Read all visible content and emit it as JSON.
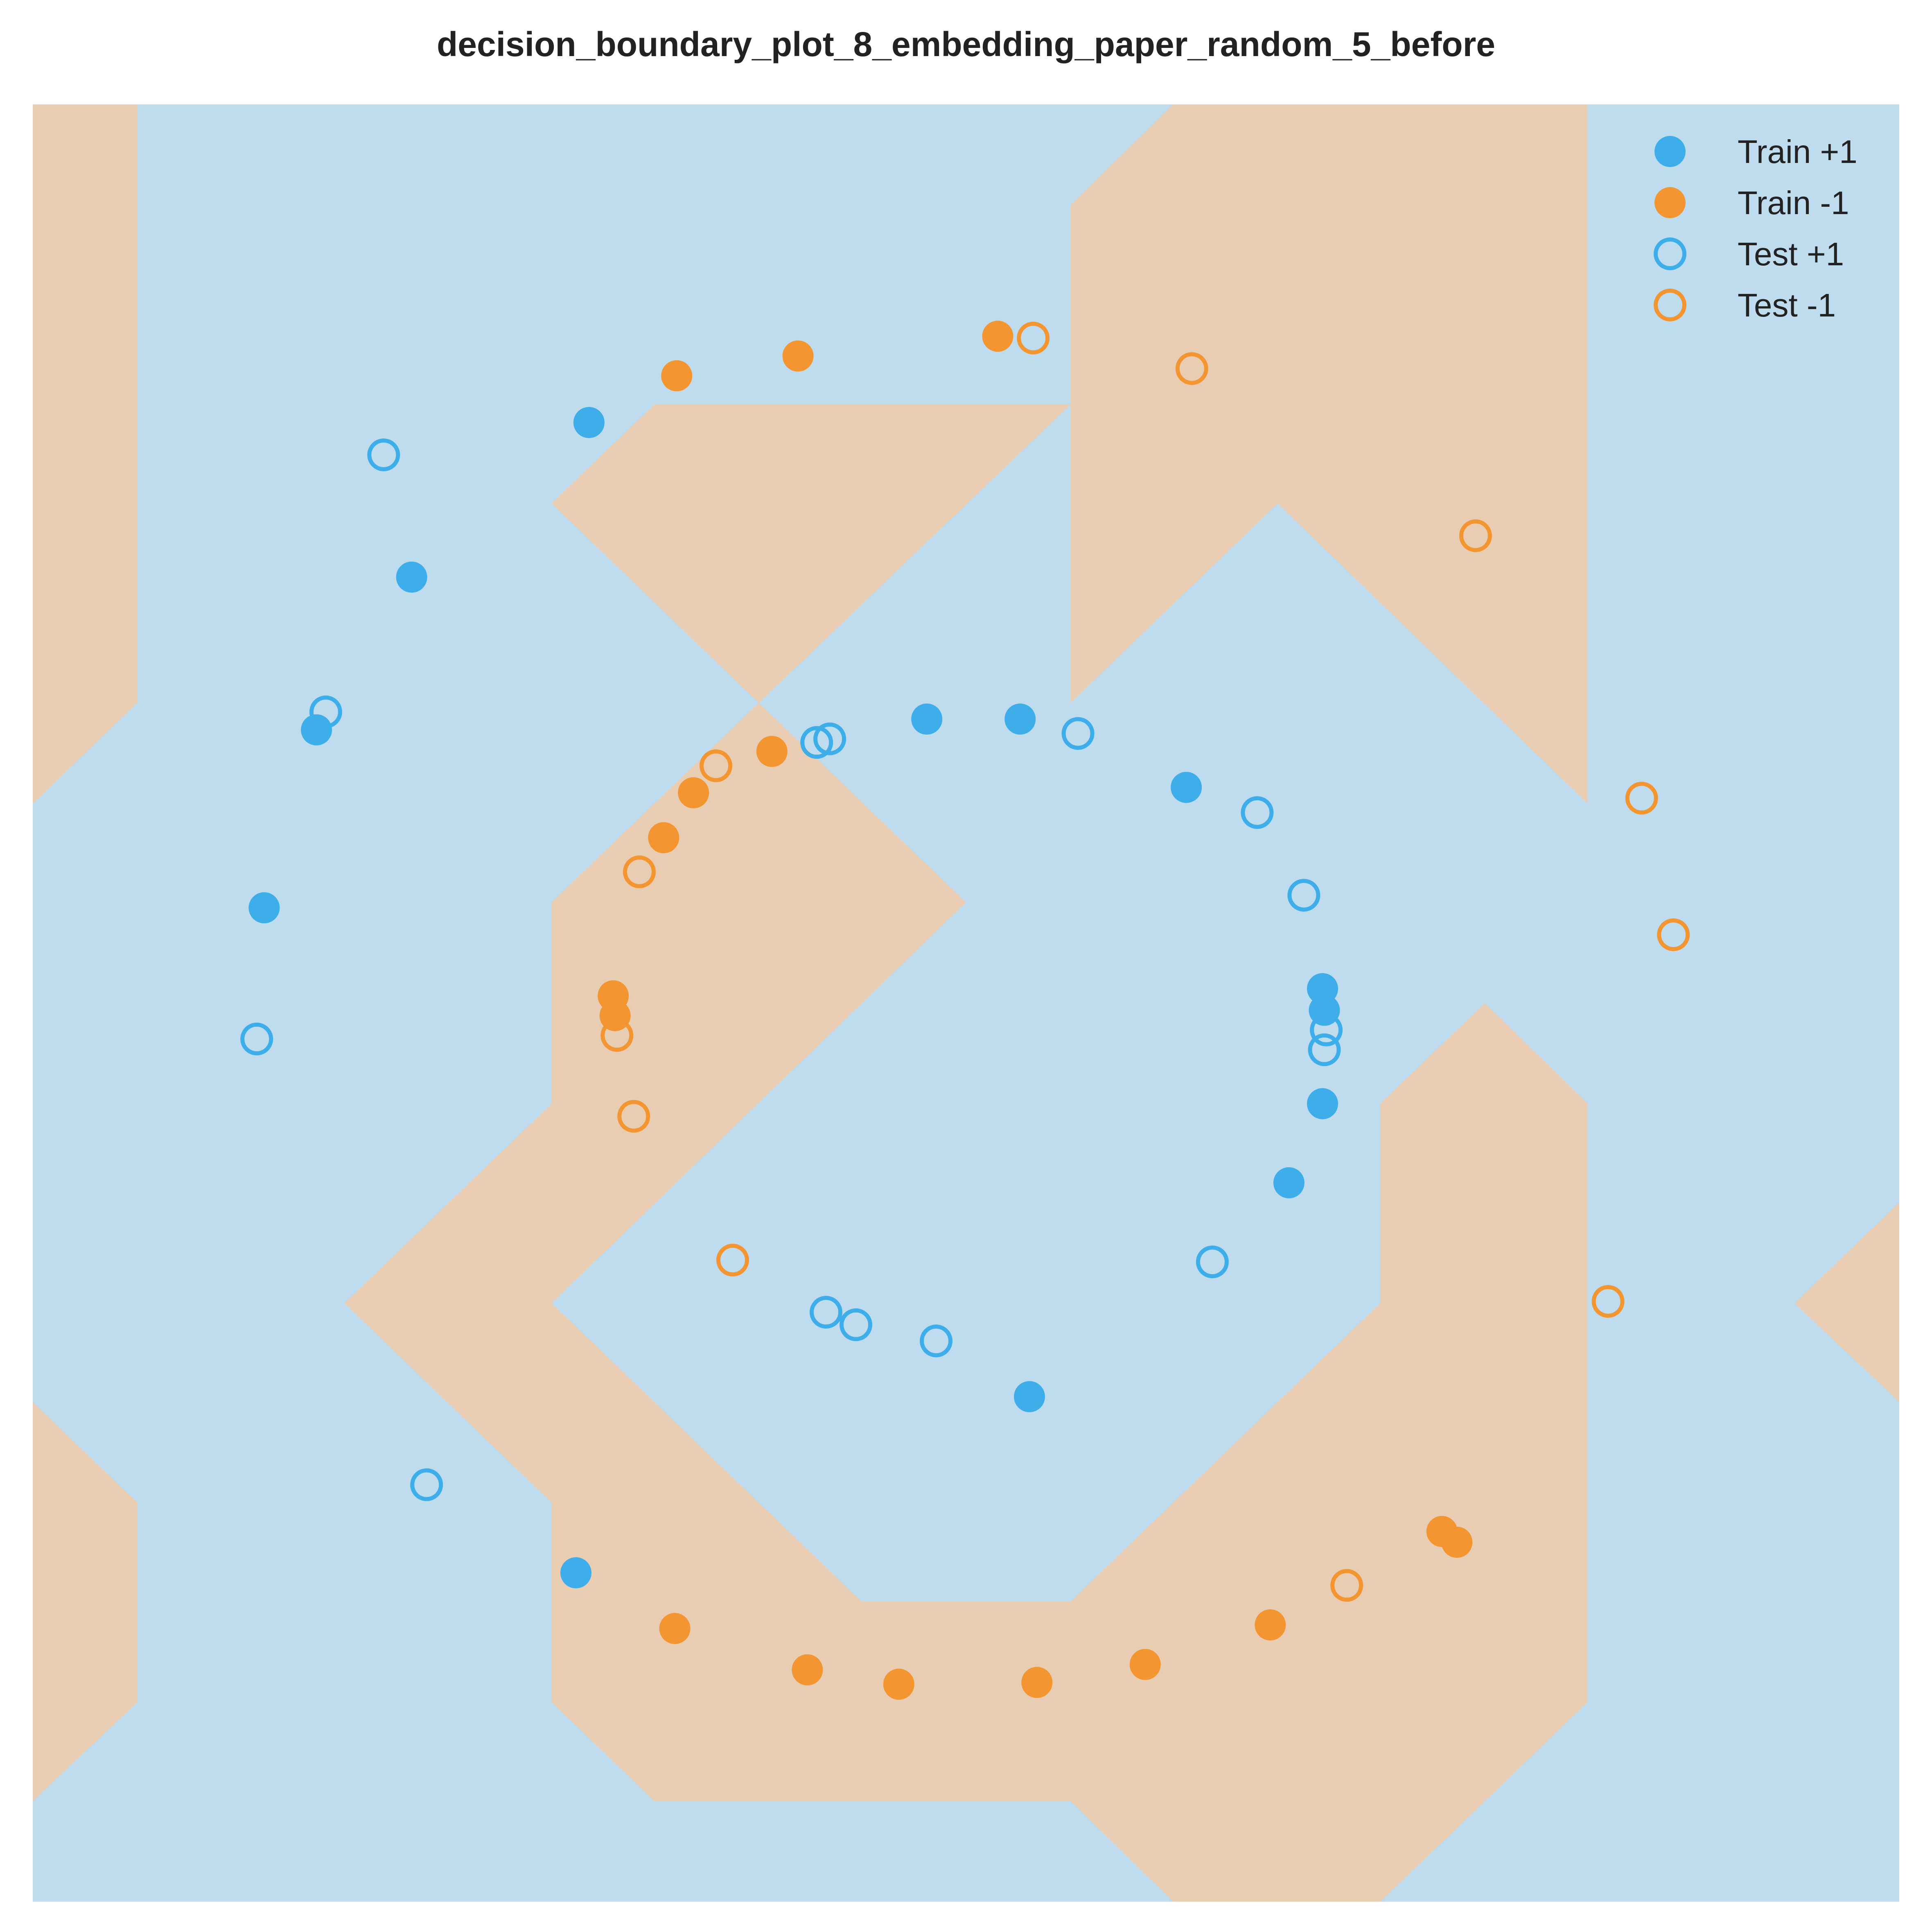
{
  "chart_data": {
    "type": "scatter",
    "title": "decision_boundary_plot_8_embedding_paper_random_5_before",
    "xlabel": "",
    "ylabel": "",
    "xlim": [
      0,
      1
    ],
    "ylim": [
      0,
      1
    ],
    "grid": false,
    "background_colors": {
      "positive_region": "#bfdcee",
      "negative_region": "#e9cdb3"
    },
    "series_colors": {
      "positive": "#3daee9",
      "negative": "#f39530"
    },
    "negative_regions": [
      [
        [
          0,
          1
        ],
        [
          0.056,
          1
        ],
        [
          0.056,
          0.667
        ],
        [
          0,
          0.611
        ]
      ],
      [
        [
          0.611,
          1
        ],
        [
          0.833,
          1
        ],
        [
          0.833,
          0.611
        ],
        [
          0.667,
          0.778
        ],
        [
          0.556,
          0.667
        ],
        [
          0.556,
          0.833
        ],
        [
          0.333,
          0.833
        ],
        [
          0.278,
          0.778
        ],
        [
          0.389,
          0.667
        ],
        [
          0.278,
          0.556
        ],
        [
          0.278,
          0.444
        ],
        [
          0.167,
          0.333
        ],
        [
          0.278,
          0.222
        ],
        [
          0.278,
          0.111
        ],
        [
          0.333,
          0.056
        ],
        [
          0.556,
          0.056
        ],
        [
          0.611,
          0
        ],
        [
          0.722,
          0
        ],
        [
          0.833,
          0.111
        ],
        [
          0.833,
          0.444
        ],
        [
          0.778,
          0.5
        ],
        [
          0.722,
          0.444
        ],
        [
          0.722,
          0.333
        ],
        [
          0.556,
          0.167
        ],
        [
          0.444,
          0.167
        ],
        [
          0.278,
          0.333
        ],
        [
          0.5,
          0.556
        ],
        [
          0.389,
          0.667
        ],
        [
          0.556,
          0.833
        ],
        [
          0.556,
          0.944
        ]
      ],
      [
        [
          0,
          0.278
        ],
        [
          0.056,
          0.222
        ],
        [
          0.056,
          0.111
        ],
        [
          0,
          0.056
        ]
      ],
      [
        [
          1,
          0.389
        ],
        [
          0.944,
          0.333
        ],
        [
          1,
          0.278
        ]
      ]
    ],
    "series": [
      {
        "name": "Train +1",
        "marker": "filled",
        "points": [
          [
            0.298,
            0.823
          ],
          [
            0.203,
            0.737
          ],
          [
            0.152,
            0.652
          ],
          [
            0.124,
            0.553
          ],
          [
            0.479,
            0.658
          ],
          [
            0.529,
            0.658
          ],
          [
            0.618,
            0.62
          ],
          [
            0.691,
            0.508
          ],
          [
            0.692,
            0.496
          ],
          [
            0.691,
            0.444
          ],
          [
            0.673,
            0.4
          ],
          [
            0.534,
            0.281
          ],
          [
            0.291,
            0.183
          ]
        ]
      },
      {
        "name": "Train -1",
        "marker": "filled",
        "points": [
          [
            0.345,
            0.849
          ],
          [
            0.41,
            0.86
          ],
          [
            0.517,
            0.871
          ],
          [
            0.396,
            0.64
          ],
          [
            0.354,
            0.617
          ],
          [
            0.338,
            0.592
          ],
          [
            0.311,
            0.504
          ],
          [
            0.312,
            0.493
          ],
          [
            0.755,
            0.206
          ],
          [
            0.763,
            0.2
          ],
          [
            0.663,
            0.154
          ],
          [
            0.596,
            0.132
          ],
          [
            0.538,
            0.122
          ],
          [
            0.464,
            0.121
          ],
          [
            0.415,
            0.129
          ],
          [
            0.344,
            0.152
          ]
        ]
      },
      {
        "name": "Test +1",
        "marker": "hollow",
        "points": [
          [
            0.188,
            0.805
          ],
          [
            0.157,
            0.662
          ],
          [
            0.12,
            0.48
          ],
          [
            0.42,
            0.645
          ],
          [
            0.427,
            0.647
          ],
          [
            0.56,
            0.65
          ],
          [
            0.656,
            0.606
          ],
          [
            0.681,
            0.56
          ],
          [
            0.693,
            0.485
          ],
          [
            0.692,
            0.474
          ],
          [
            0.632,
            0.356
          ],
          [
            0.425,
            0.328
          ],
          [
            0.441,
            0.321
          ],
          [
            0.484,
            0.312
          ],
          [
            0.211,
            0.232
          ]
        ]
      },
      {
        "name": "Test -1",
        "marker": "hollow",
        "points": [
          [
            0.536,
            0.87
          ],
          [
            0.621,
            0.853
          ],
          [
            0.773,
            0.76
          ],
          [
            0.366,
            0.632
          ],
          [
            0.325,
            0.573
          ],
          [
            0.313,
            0.482
          ],
          [
            0.322,
            0.437
          ],
          [
            0.375,
            0.357
          ],
          [
            0.862,
            0.614
          ],
          [
            0.879,
            0.538
          ],
          [
            0.844,
            0.334
          ],
          [
            0.704,
            0.176
          ]
        ]
      }
    ],
    "legend": {
      "position": "top-right",
      "entries": [
        {
          "label": "Train +1",
          "marker": "filled",
          "color": "#3daee9"
        },
        {
          "label": "Train -1",
          "marker": "filled",
          "color": "#f39530"
        },
        {
          "label": "Test +1",
          "marker": "hollow",
          "color": "#3daee9"
        },
        {
          "label": "Test -1",
          "marker": "hollow",
          "color": "#f39530"
        }
      ]
    }
  }
}
